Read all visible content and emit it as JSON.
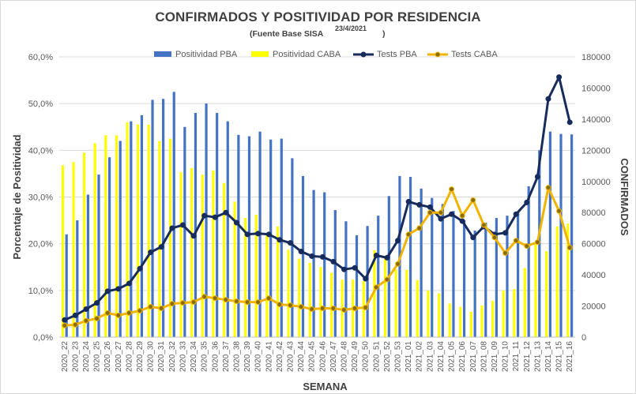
{
  "chart_data": {
    "type": "bar+line",
    "title": "CONFIRMADOS Y POSITIVIDAD POR RESIDENCIA",
    "subtitle_source": "(Fuente Base SISA",
    "subtitle_date": "23/4/2021",
    "subtitle_close": ")",
    "xlabel": "SEMANA",
    "ylabel_left": "Porcentaje de Positividad",
    "ylabel_right": "CONFIRMADOS",
    "ylim_left": [
      0,
      60
    ],
    "ylim_right": [
      0,
      180000
    ],
    "left_ticks": [
      "0,0%",
      "10,0%",
      "20,0%",
      "30,0%",
      "40,0%",
      "50,0%",
      "60,0%"
    ],
    "right_ticks": [
      "0",
      "20000",
      "40000",
      "60000",
      "80000",
      "100000",
      "120000",
      "140000",
      "160000",
      "180000"
    ],
    "categories": [
      "2020_22",
      "2020_23",
      "2020_24",
      "2020_25",
      "2020_26",
      "2020_27",
      "2020_28",
      "2020_29",
      "2020_30",
      "2020_31",
      "2020_32",
      "2020_33",
      "2020_34",
      "2020_35",
      "2020_36",
      "2020_37",
      "2020_38",
      "2020_39",
      "2020_40",
      "2020_41",
      "2020_42",
      "2020_43",
      "2020_44",
      "2020_45",
      "2020_46",
      "2020_47",
      "2020_48",
      "2020_49",
      "2020_50",
      "2020_51",
      "2020_52",
      "2020_53",
      "2021_01",
      "2021_02",
      "2021_03",
      "2021_04",
      "2021_05",
      "2021_06",
      "2021_07",
      "2021_08",
      "2021_09",
      "2021_10",
      "2021_11",
      "2021_12",
      "2021_13",
      "2021_14",
      "2021_15",
      "2021_16"
    ],
    "series": [
      {
        "name": "Positividad PBA",
        "type": "bar",
        "axis": "left",
        "color": "#4472c4",
        "values": [
          22.0,
          25.0,
          30.5,
          34.8,
          38.5,
          42.0,
          46.2,
          47.5,
          50.8,
          51.0,
          52.5,
          45.0,
          48.0,
          50.0,
          48.0,
          46.2,
          43.3,
          43.0,
          44.0,
          42.3,
          42.5,
          38.3,
          34.5,
          31.5,
          31.0,
          27.2,
          24.8,
          21.8,
          23.8,
          26.0,
          30.2,
          34.5,
          34.3,
          31.8,
          29.8,
          28.5,
          27.0,
          25.0,
          22.8,
          24.5,
          25.5,
          26.0,
          26.7,
          32.3,
          40.0,
          44.0,
          43.5,
          43.4
        ]
      },
      {
        "name": "Positividad CABA",
        "type": "bar",
        "axis": "left",
        "color": "#ffff00",
        "values": [
          36.8,
          37.5,
          39.5,
          41.5,
          43.2,
          43.2,
          46.0,
          45.5,
          45.5,
          42.0,
          42.5,
          35.3,
          36.2,
          34.8,
          35.7,
          33.0,
          29.0,
          25.5,
          26.2,
          22.2,
          23.7,
          18.7,
          16.8,
          15.9,
          15.0,
          13.8,
          12.3,
          12.3,
          12.0,
          18.6,
          17.0,
          14.5,
          14.4,
          12.2,
          10.0,
          9.4,
          7.2,
          6.5,
          5.4,
          6.8,
          7.8,
          10.0,
          10.3,
          14.8,
          20.2,
          18.4,
          23.7,
          24.3
        ]
      },
      {
        "name": "Tests PBA",
        "type": "line",
        "axis": "right",
        "color": "#172b5c",
        "values": [
          11000,
          14000,
          18000,
          22000,
          29500,
          31000,
          34500,
          44000,
          54500,
          58000,
          70000,
          72000,
          65000,
          78000,
          77000,
          80000,
          73500,
          66000,
          66500,
          66000,
          62500,
          60500,
          55000,
          52000,
          51500,
          48500,
          43500,
          44500,
          37500,
          52500,
          51000,
          62000,
          87000,
          85000,
          83500,
          76000,
          79000,
          74500,
          64000,
          71000,
          66000,
          67000,
          79000,
          86500,
          103000,
          153000,
          167000,
          138000
        ]
      },
      {
        "name": "Tests CABA",
        "type": "line",
        "axis": "right",
        "color": "#f0b400",
        "values": [
          7500,
          8000,
          10500,
          12000,
          15500,
          14000,
          15500,
          17000,
          19500,
          18500,
          21500,
          22000,
          22500,
          26000,
          25000,
          24000,
          23000,
          22500,
          22500,
          25000,
          21000,
          20500,
          19500,
          18000,
          18500,
          18500,
          17500,
          18500,
          19000,
          32000,
          37000,
          47000,
          66000,
          70000,
          80000,
          80000,
          95000,
          78000,
          88000,
          72000,
          64000,
          54000,
          62000,
          58500,
          61000,
          96000,
          81000,
          57500
        ]
      }
    ],
    "legend": [
      "Positividad PBA",
      "Positividad CABA",
      "Tests PBA",
      "Tests CABA"
    ],
    "legend_position": "top",
    "grid": true
  }
}
